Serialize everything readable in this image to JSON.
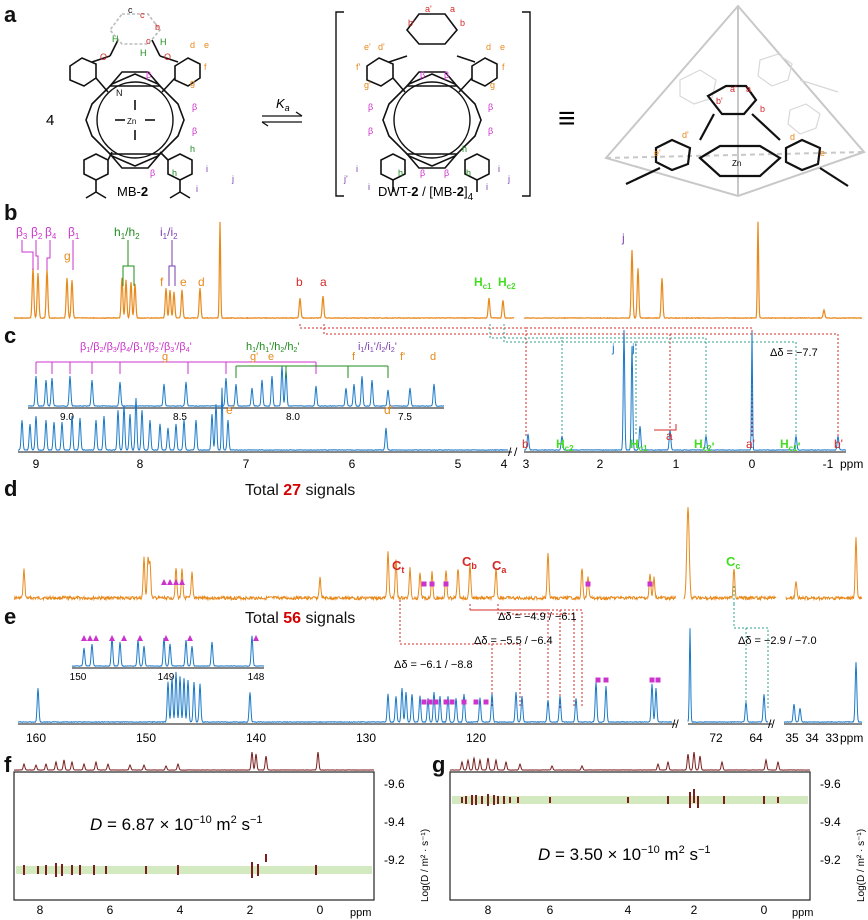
{
  "panels": {
    "a": "a",
    "b": "b",
    "c": "c",
    "d": "d",
    "e": "e",
    "f": "f",
    "g": "g"
  },
  "scheme": {
    "stoich": "4",
    "k_label": "K",
    "k_sub": "a",
    "monomer_name_prefix": "MB-",
    "monomer_name_num": "2",
    "dimer_label_prefix": "DWT-",
    "dimer_label_mid": " / [MB-",
    "dimer_label_num": "2",
    "dimer_label_end": "]",
    "dimer_sub": "4",
    "equiv": "≡",
    "labels_monomer": {
      "ct": "c",
      "ct_sub": "t",
      "ca": "c",
      "ca_sub": "a",
      "cb": "c",
      "cb_sub": "b",
      "a": "a",
      "b": "b",
      "d": "d",
      "e": "e",
      "f": "f",
      "g": "g",
      "h1": "h",
      "h2": "h",
      "i1": "i",
      "i2": "i",
      "j": "j",
      "beta1": "β",
      "beta2": "β",
      "beta3": "β",
      "beta4": "β",
      "H": "H",
      "Hc1": "H",
      "Hc2": "H",
      "O": "O",
      "N": "N",
      "Zn": "Zn"
    },
    "labels_dimer": {
      "a": "a",
      "ap": "a'",
      "b": "b",
      "bp": "b'",
      "dp": "d'",
      "ep": "e'",
      "fp": "f'",
      "gp": "g'",
      "d": "d",
      "e": "e",
      "f": "f",
      "g": "g",
      "b1": "β",
      "b1p": "β",
      "b2": "β",
      "b2p": "β",
      "b3": "β",
      "b3p": "β",
      "b4": "β",
      "b4p": "β",
      "i1": "i",
      "i1p": "i",
      "i2": "i",
      "i2p": "i",
      "h1": "h",
      "h2": "h",
      "h2p": "h",
      "j": "j",
      "jp": "j'"
    }
  },
  "b": {
    "labels": [
      {
        "t": "β",
        "sub": "3"
      },
      {
        "t": "β",
        "sub": "2"
      },
      {
        "t": "β",
        "sub": "4"
      },
      {
        "t": "β",
        "sub": "1"
      }
    ],
    "h_label": "h",
    "i_label": "i",
    "g": "g",
    "f": "f",
    "e": "e",
    "d": "d",
    "b": "b",
    "a": "a",
    "j": "j",
    "hc": "H",
    "hc1_sub": "c1",
    "hc2_sub": "c2"
  },
  "c": {
    "beta_group": "β",
    "h_group": "h",
    "i_group": "i",
    "inset_ticks": [
      "9.0",
      "8.5",
      "8.0",
      "7.5"
    ],
    "g": "g",
    "gp": "g'",
    "e": "e",
    "f": "f",
    "fp": "f'",
    "d": "d",
    "ep": "e'",
    "dp": "d'",
    "j": "j",
    "jp": "j'",
    "b": "b",
    "a": "a",
    "ap": "a'",
    "bp": "b'",
    "hc2": "H",
    "hc2_sub": "c2",
    "hc1": "H",
    "hc1_sub": "c1",
    "hc2p": "H",
    "hc2p_sub": "c2",
    "hc1p": "H",
    "hc1p_sub": "c1",
    "delta": "Δδ = −7.7",
    "axis_ticks": [
      "9",
      "8",
      "7",
      "6",
      "5",
      "4",
      "3",
      "2",
      "1",
      "0",
      "-1"
    ],
    "axis_unit": "ppm"
  },
  "d": {
    "title_pre": "Total ",
    "title_num": "27",
    "title_post": " signals",
    "ct": "C",
    "ct_sub": "t",
    "cb": "C",
    "cb_sub": "b",
    "ca": "C",
    "ca_sub": "a",
    "cc": "C",
    "cc_sub": "c"
  },
  "e": {
    "title_pre": "Total ",
    "title_num": "56",
    "title_post": " signals",
    "delta1": "Δδ = −4.9 / −6.1",
    "delta2": "Δδ = −5.5 / −6.4",
    "delta3": "Δδ = −6.1 / −8.8",
    "delta4": "Δδ = −2.9 / −7.0",
    "inset_ticks": [
      "150",
      "149",
      "148"
    ],
    "axis_ticks": [
      "160",
      "150",
      "140",
      "130",
      "120",
      "72",
      "64",
      "35",
      "34",
      "33"
    ],
    "axis_unit": "ppm"
  },
  "f": {
    "d_label": "D",
    "d_value": " = 6.87 × 10",
    "d_exp": "−10",
    "d_units": " m",
    "d_units_exp": "2",
    "d_units_end": " s",
    "d_units_end_exp": "−1",
    "y_ticks": [
      "-9.6",
      "-9.4",
      "-9.2"
    ],
    "x_ticks": [
      "8",
      "6",
      "4",
      "2",
      "0"
    ],
    "x_unit": "ppm",
    "y_title": "Log(D / m² · s⁻¹)"
  },
  "g": {
    "d_label": "D",
    "d_value": " = 3.50 × 10",
    "d_exp": "−10",
    "d_units": " m",
    "d_units_exp": "2",
    "d_units_end": " s",
    "d_units_end_exp": "−1",
    "y_ticks": [
      "-9.6",
      "-9.4",
      "-9.2"
    ],
    "x_ticks": [
      "8",
      "6",
      "4",
      "2",
      "0"
    ],
    "x_unit": "ppm",
    "y_title": "Log(D / m² · s⁻¹)"
  },
  "colors": {
    "orange": "#e8891b",
    "blue": "#1a78c8",
    "magenta": "#cc33cc",
    "green": "#1e8c1e",
    "brightgreen": "#44dd22",
    "red": "#d42a2a",
    "purple": "#7b3fb0",
    "brown": "#7a1e1e"
  }
}
